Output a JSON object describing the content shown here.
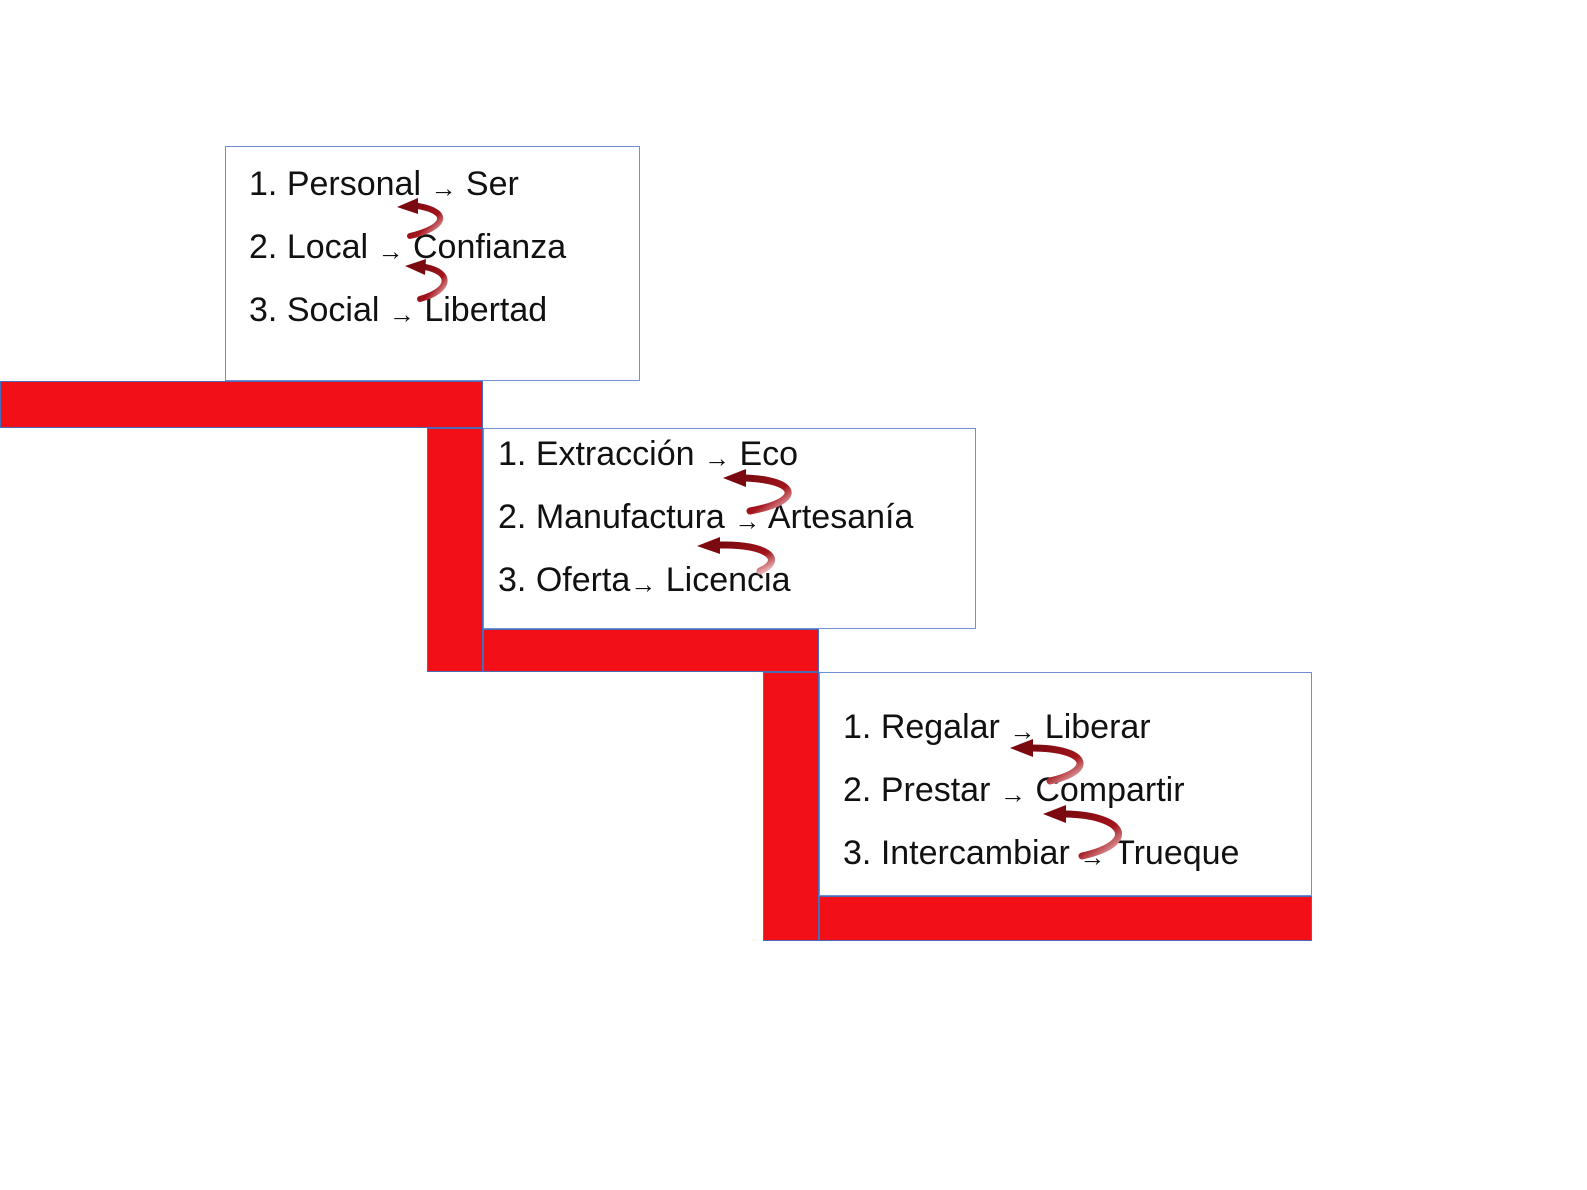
{
  "accent_color": "#f20f17",
  "curve_color": "#8b0a0f",
  "box_border_color": "#6f8fcf",
  "step1": {
    "items": [
      {
        "num": "1.",
        "from": "Personal",
        "arrow": "→",
        "to": "Ser"
      },
      {
        "num": "2.",
        "from": "Local",
        "arrow": "→",
        "to": "Confianza"
      },
      {
        "num": "3.",
        "from": "Social",
        "arrow": "→",
        "to": "Libertad"
      }
    ]
  },
  "step2": {
    "items": [
      {
        "num": "1.",
        "from": "Extracción",
        "arrow": "→",
        "to": "Eco"
      },
      {
        "num": "2.",
        "from": "Manufactura",
        "arrow": "→",
        "to": "Artesanía"
      },
      {
        "num": "3.",
        "from": "Oferta",
        "arrow": "→",
        "to": "Licencia"
      }
    ]
  },
  "step3": {
    "items": [
      {
        "num": "1.",
        "from": "Regalar",
        "arrow": "→",
        "to": "Liberar"
      },
      {
        "num": "2.",
        "from": "Prestar",
        "arrow": "→",
        "to": "Compartir"
      },
      {
        "num": "3.",
        "from": "Intercambiar",
        "arrow": "→",
        "to": "Trueque"
      }
    ]
  }
}
